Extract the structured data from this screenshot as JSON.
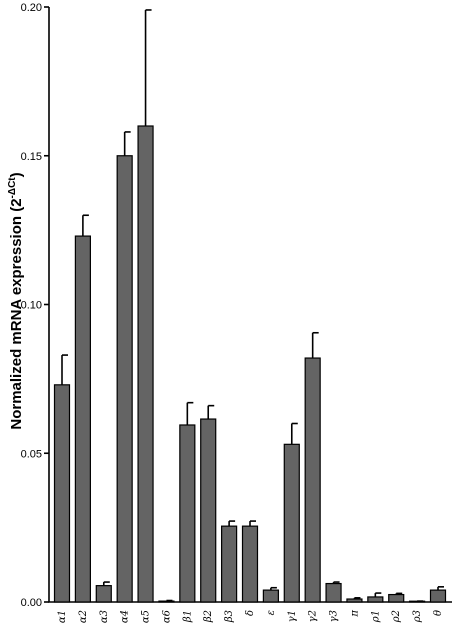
{
  "chart_data": {
    "type": "bar",
    "ylabel_main": "Normalized mRNA expression (2",
    "ylabel_sup": "-ΔCt",
    "ylabel_end": ")",
    "ylim": [
      0,
      0.2
    ],
    "yticks": [
      "0.00",
      "0.05",
      "0.10",
      "0.15",
      "0.20"
    ],
    "ytick_values": [
      0,
      0.05,
      0.1,
      0.15,
      0.2
    ],
    "categories": [
      "α1",
      "α2",
      "α3",
      "α4",
      "α5",
      "α6",
      "β1",
      "β2",
      "β3",
      "δ",
      "ε",
      "γ1",
      "γ2",
      "γ3",
      "π",
      "ρ1",
      "ρ2",
      "ρ3",
      "θ"
    ],
    "values": [
      0.073,
      0.123,
      0.0055,
      0.15,
      0.16,
      0.0003,
      0.0595,
      0.0615,
      0.0255,
      0.0255,
      0.004,
      0.053,
      0.082,
      0.0062,
      0.001,
      0.0017,
      0.0025,
      0.0002,
      0.004
    ],
    "errors": [
      0.01,
      0.007,
      0.0012,
      0.008,
      0.039,
      0.0002,
      0.0075,
      0.0045,
      0.0017,
      0.0017,
      0.0008,
      0.007,
      0.0085,
      0.0005,
      0.0004,
      0.0013,
      0.0004,
      0.0001,
      0.0011
    ],
    "bar_color": "#646464",
    "grid": false
  }
}
